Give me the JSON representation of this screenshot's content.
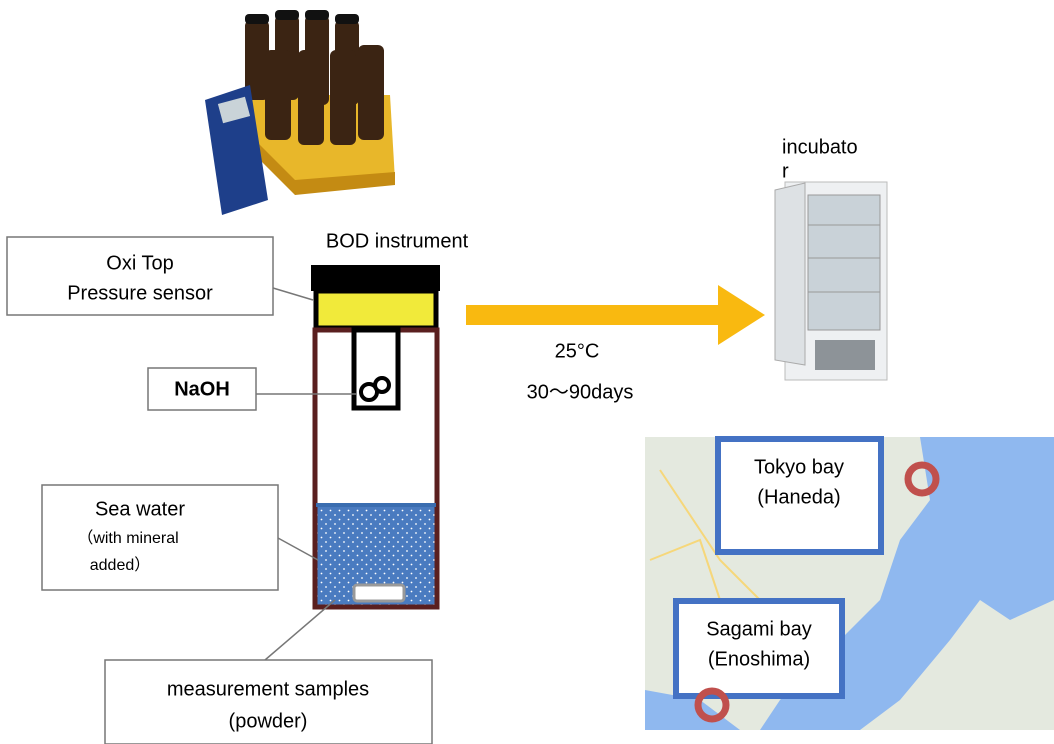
{
  "labels": {
    "instrument": "BOD instrument",
    "sensor": [
      "Oxi Top",
      "Pressure sensor"
    ],
    "naoh": "NaOH",
    "sea_water": [
      "Sea water",
      "（with mineral",
      "added）"
    ],
    "samples": [
      "measurement samples",
      "(powder)"
    ],
    "conditions": [
      "25°C",
      "30～90days"
    ],
    "incubator": [
      "incubato",
      "r"
    ]
  },
  "map": {
    "sites": [
      {
        "name": "Tokyo bay",
        "place": "(Haneda)"
      },
      {
        "name": "Sagami bay",
        "place": "(Enoshima)"
      }
    ]
  }
}
